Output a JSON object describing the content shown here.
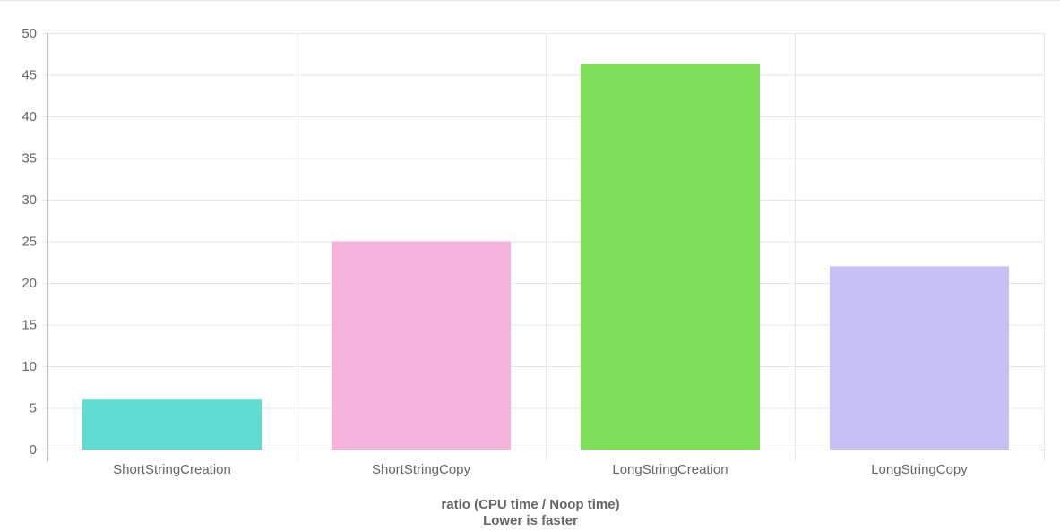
{
  "chart_data": {
    "type": "bar",
    "categories": [
      "ShortStringCreation",
      "ShortStringCopy",
      "LongStringCreation",
      "LongStringCopy"
    ],
    "values": [
      6,
      25,
      46.3,
      22
    ],
    "colors": [
      "#5fdbcf",
      "#f3b3da",
      "#7ede5a",
      "#c6c0f4"
    ],
    "xlabel": "ratio (CPU time / Noop time)",
    "subtitle": "Lower is faster",
    "ylim": [
      0,
      50
    ],
    "yticks": [
      0,
      5,
      10,
      15,
      20,
      25,
      30,
      35,
      40,
      45,
      50
    ],
    "grid": true,
    "grid_color": "#e6e6e6",
    "axis_color": "#bdbdbd",
    "label_color": "#666666"
  }
}
